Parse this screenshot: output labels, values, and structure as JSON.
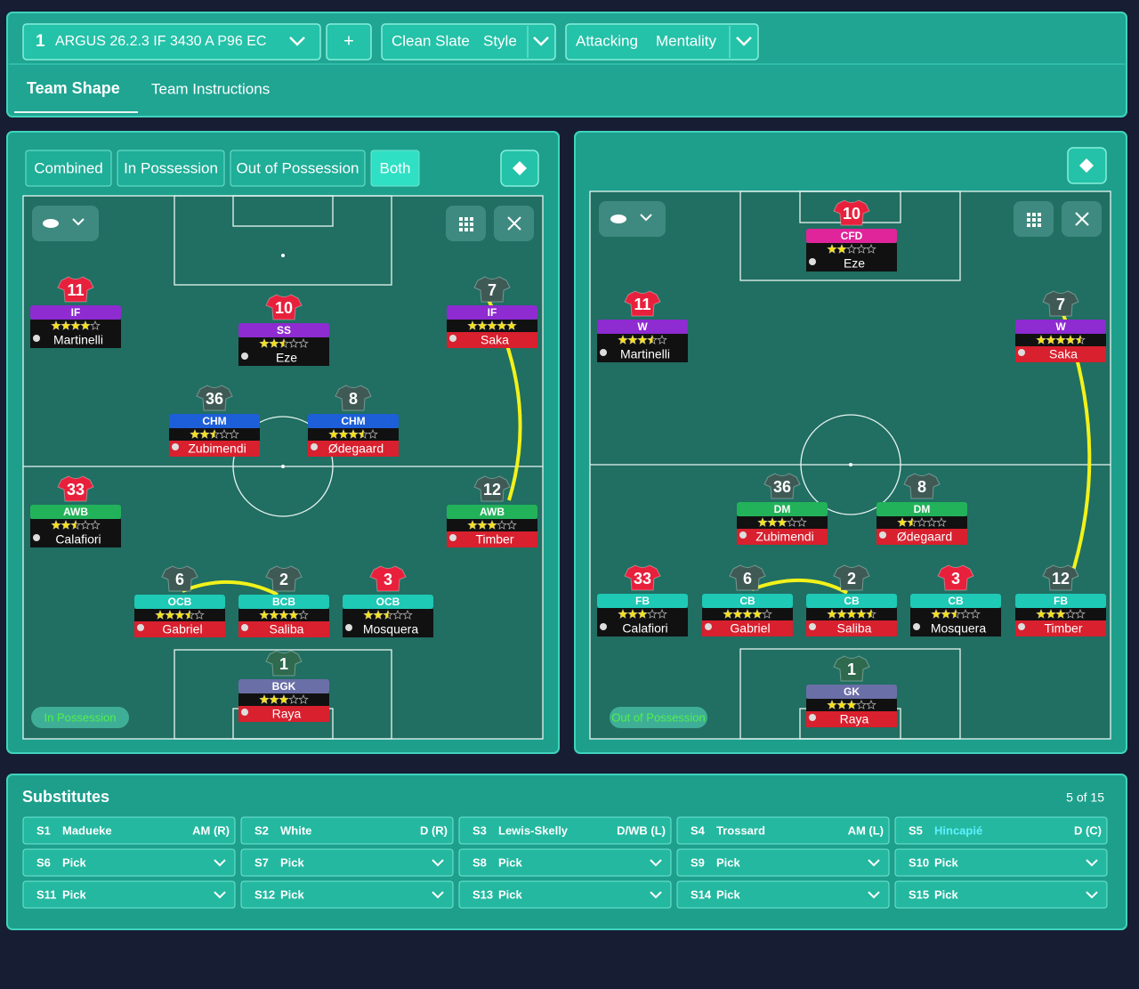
{
  "header": {
    "tactic_number": "1",
    "tactic_name": "ARGUS 26.2.3 IF 3430 A P96 EC",
    "add": "+",
    "style": [
      "Clean Slate",
      "Style"
    ],
    "mentality": [
      "Attacking",
      "Mentality"
    ]
  },
  "tabs": [
    "Team Shape",
    "Team Instructions"
  ],
  "view_tabs": [
    "Combined",
    "In Possession",
    "Out of Possession",
    "Both"
  ],
  "pitches": [
    {
      "phase": "In Possession",
      "players": [
        {
          "number": "11",
          "role": "IF",
          "stars": 4,
          "name": "Martinelli",
          "role_color": "#8e2bd1",
          "shirt": "#e8203c",
          "bar": "#111111"
        },
        {
          "number": "10",
          "role": "SS",
          "stars": 2.5,
          "name": "Eze",
          "role_color": "#8e2bd1",
          "shirt": "#e8203c",
          "bar": "#111111"
        },
        {
          "number": "7",
          "role": "IF",
          "stars": 5,
          "name": "Saka",
          "role_color": "#8e2bd1",
          "shirt": "#3f5a55",
          "bar": "#d8202e"
        },
        {
          "number": "36",
          "role": "CHM",
          "stars": 2.5,
          "name": "Zubimendi",
          "role_color": "#1c5fd8",
          "shirt": "#3f5a55",
          "bar": "#d8202e"
        },
        {
          "number": "8",
          "role": "CHM",
          "stars": 3.5,
          "name": "Ødegaard",
          "role_color": "#1c5fd8",
          "shirt": "#3f5a55",
          "bar": "#d8202e"
        },
        {
          "number": "33",
          "role": "AWB",
          "stars": 2.5,
          "name": "Calafiori",
          "role_color": "#22b35a",
          "shirt": "#e8203c",
          "bar": "#111111"
        },
        {
          "number": "12",
          "role": "AWB",
          "stars": 3,
          "name": "Timber",
          "role_color": "#22b35a",
          "shirt": "#3f5a55",
          "bar": "#d8202e"
        },
        {
          "number": "6",
          "role": "OCB",
          "stars": 3.5,
          "name": "Gabriel",
          "role_color": "#1ec9b5",
          "shirt": "#3f5a55",
          "bar": "#d8202e"
        },
        {
          "number": "2",
          "role": "BCB",
          "stars": 4,
          "name": "Saliba",
          "role_color": "#1ec9b5",
          "shirt": "#3f5a55",
          "bar": "#d8202e"
        },
        {
          "number": "3",
          "role": "OCB",
          "stars": 2.5,
          "name": "Mosquera",
          "role_color": "#1ec9b5",
          "shirt": "#e8203c",
          "bar": "#111111"
        },
        {
          "number": "1",
          "role": "BGK",
          "stars": 3,
          "name": "Raya",
          "role_color": "#6b6fa8",
          "shirt": "#2f6a4f",
          "bar": "#d8202e"
        }
      ]
    },
    {
      "phase": "Out of Possession",
      "players": [
        {
          "number": "10",
          "role": "CFD",
          "stars": 2,
          "name": "Eze",
          "role_color": "#e0259a",
          "shirt": "#e8203c",
          "bar": "#111111"
        },
        {
          "number": "11",
          "role": "W",
          "stars": 3.5,
          "name": "Martinelli",
          "role_color": "#8e2bd1",
          "shirt": "#e8203c",
          "bar": "#111111"
        },
        {
          "number": "7",
          "role": "W",
          "stars": 4.5,
          "name": "Saka",
          "role_color": "#8e2bd1",
          "shirt": "#3f5a55",
          "bar": "#d8202e"
        },
        {
          "number": "36",
          "role": "DM",
          "stars": 3,
          "name": "Zubimendi",
          "role_color": "#22b35a",
          "shirt": "#3f5a55",
          "bar": "#d8202e"
        },
        {
          "number": "8",
          "role": "DM",
          "stars": 1.5,
          "name": "Ødegaard",
          "role_color": "#22b35a",
          "shirt": "#3f5a55",
          "bar": "#d8202e"
        },
        {
          "number": "33",
          "role": "FB",
          "stars": 3,
          "name": "Calafiori",
          "role_color": "#1ec9b5",
          "shirt": "#e8203c",
          "bar": "#111111"
        },
        {
          "number": "6",
          "role": "CB",
          "stars": 4,
          "name": "Gabriel",
          "role_color": "#1ec9b5",
          "shirt": "#3f5a55",
          "bar": "#d8202e"
        },
        {
          "number": "2",
          "role": "CB",
          "stars": 4.5,
          "name": "Saliba",
          "role_color": "#1ec9b5",
          "shirt": "#3f5a55",
          "bar": "#d8202e"
        },
        {
          "number": "3",
          "role": "CB",
          "stars": 2.5,
          "name": "Mosquera",
          "role_color": "#1ec9b5",
          "shirt": "#e8203c",
          "bar": "#111111"
        },
        {
          "number": "12",
          "role": "FB",
          "stars": 3,
          "name": "Timber",
          "role_color": "#1ec9b5",
          "shirt": "#3f5a55",
          "bar": "#d8202e"
        },
        {
          "number": "1",
          "role": "GK",
          "stars": 3,
          "name": "Raya",
          "role_color": "#6b6fa8",
          "shirt": "#2f6a4f",
          "bar": "#d8202e"
        }
      ]
    }
  ],
  "substitutes": {
    "title": "Substitutes",
    "count": "5 of 15",
    "slots": [
      {
        "slot": "S1",
        "name": "Madueke",
        "position": "AM (R)"
      },
      {
        "slot": "S2",
        "name": "White",
        "position": "D (R)"
      },
      {
        "slot": "S3",
        "name": "Lewis-Skelly",
        "position": "D/WB (L)"
      },
      {
        "slot": "S4",
        "name": "Trossard",
        "position": "AM (L)"
      },
      {
        "slot": "S5",
        "name": "Hincapié",
        "position": "D (C)",
        "name_color": "#5ff0ff"
      },
      {
        "slot": "S6",
        "name": "Pick"
      },
      {
        "slot": "S7",
        "name": "Pick"
      },
      {
        "slot": "S8",
        "name": "Pick"
      },
      {
        "slot": "S9",
        "name": "Pick"
      },
      {
        "slot": "S10",
        "name": "Pick"
      },
      {
        "slot": "S11",
        "name": "Pick"
      },
      {
        "slot": "S12",
        "name": "Pick"
      },
      {
        "slot": "S13",
        "name": "Pick"
      },
      {
        "slot": "S14",
        "name": "Pick"
      },
      {
        "slot": "S15",
        "name": "Pick"
      }
    ]
  }
}
